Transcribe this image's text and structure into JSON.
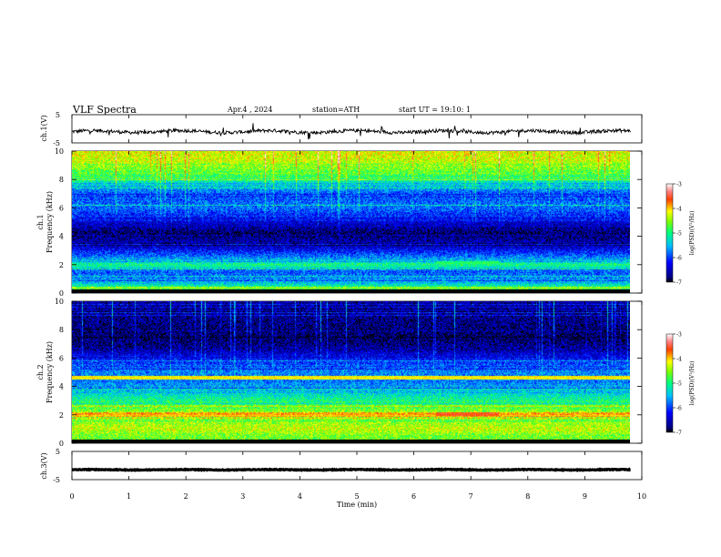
{
  "header": {
    "title": "VLF Spectra",
    "date": "Apr.4 , 2024",
    "station": "station=ATH",
    "start": "start UT = 19:10: 1"
  },
  "chart_data": [
    {
      "type": "line",
      "name": "ch1-waveform",
      "ylabel": "ch.1(V)",
      "ylim": [
        -5,
        5
      ],
      "yticks": [
        "5",
        "-5"
      ],
      "xlim": [
        0,
        10
      ],
      "data_extent_min": 9.8,
      "baseline": -1.0,
      "noise": 1.2,
      "color": "#000000"
    },
    {
      "type": "heatmap",
      "name": "ch1-spectrogram",
      "ylabel_line1": "ch.1",
      "ylabel_line2": "Frequency (kHz)",
      "ylim": [
        0,
        10
      ],
      "yticks": [
        "0",
        "2",
        "4",
        "6",
        "8",
        "10"
      ],
      "xlim": [
        0,
        10
      ],
      "data_extent_min": 9.8,
      "colorbar": {
        "label": "log(PSD)(V²/Hz)",
        "ticks": [
          "-3",
          "-4",
          "-5",
          "-6",
          "-7"
        ],
        "range": [
          -7,
          -3
        ]
      },
      "profile": [
        [
          0.0,
          -4.0
        ],
        [
          0.3,
          -4.8
        ],
        [
          0.8,
          -5.6
        ],
        [
          1.5,
          -5.9
        ],
        [
          2.0,
          -5.0
        ],
        [
          2.4,
          -5.6
        ],
        [
          3.2,
          -6.4
        ],
        [
          4.2,
          -6.8
        ],
        [
          5.0,
          -6.4
        ],
        [
          6.0,
          -5.8
        ],
        [
          7.0,
          -5.9
        ],
        [
          8.3,
          -4.8
        ],
        [
          9.3,
          -4.3
        ],
        [
          10.0,
          -4.2
        ]
      ],
      "bands": [
        {
          "f": 2.15,
          "x0": 6.4,
          "x1": 7.5,
          "level": -4.9
        },
        {
          "f": 1.9,
          "x0": 0.0,
          "x1": 9.8,
          "level": -5.3
        }
      ]
    },
    {
      "type": "heatmap",
      "name": "ch2-spectrogram",
      "ylabel_line1": "ch.2",
      "ylabel_line2": "Frequency (kHz)",
      "ylim": [
        0,
        10
      ],
      "yticks": [
        "0",
        "2",
        "4",
        "6",
        "8",
        "10"
      ],
      "xlim": [
        0,
        10
      ],
      "data_extent_min": 9.8,
      "colorbar": {
        "label": "log(PSD)(V²/Hz)",
        "ticks": [
          "-3",
          "-4",
          "-5",
          "-6",
          "-7"
        ],
        "range": [
          -7,
          -3
        ]
      },
      "profile": [
        [
          0.0,
          -4.6
        ],
        [
          0.5,
          -4.6
        ],
        [
          1.0,
          -4.3
        ],
        [
          1.8,
          -4.6
        ],
        [
          2.0,
          -4.3
        ],
        [
          2.6,
          -4.8
        ],
        [
          3.0,
          -5.0
        ],
        [
          3.6,
          -5.4
        ],
        [
          4.4,
          -5.8
        ],
        [
          5.0,
          -5.7
        ],
        [
          5.8,
          -6.1
        ],
        [
          6.6,
          -6.6
        ],
        [
          7.4,
          -6.8
        ],
        [
          8.5,
          -6.7
        ],
        [
          10.0,
          -6.6
        ]
      ],
      "bands": [
        {
          "f": 4.6,
          "x0": 0.0,
          "x1": 9.8,
          "level": -4.1
        },
        {
          "f": 2.0,
          "x0": 0.0,
          "x1": 9.8,
          "level": -4.0
        },
        {
          "f": 2.05,
          "x0": 6.4,
          "x1": 7.5,
          "level": -3.6
        }
      ]
    },
    {
      "type": "line",
      "name": "ch3-waveform",
      "ylabel": "ch.3(V)",
      "ylim": [
        -5,
        5
      ],
      "yticks": [
        "5",
        "-5"
      ],
      "xlim": [
        0,
        10
      ],
      "data_extent_min": 9.8,
      "baseline": -1.5,
      "noise": 0.25,
      "color": "#000000"
    }
  ],
  "xaxis": {
    "label": "Time (min)",
    "ticks": [
      "0",
      "1",
      "2",
      "3",
      "4",
      "5",
      "6",
      "7",
      "8",
      "9",
      "10"
    ]
  }
}
